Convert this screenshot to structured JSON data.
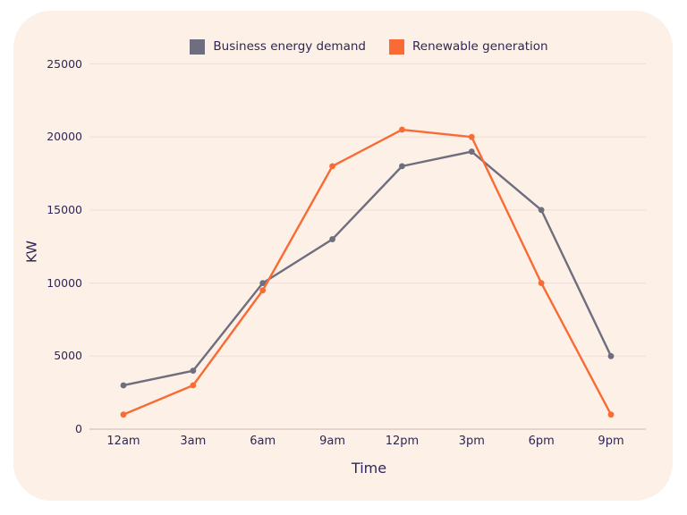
{
  "page": {
    "background_color": "#ffffff",
    "card_color": "#fdf0e6",
    "text_color": "#2f2755"
  },
  "chart_data": {
    "type": "line",
    "title": "",
    "xlabel": "Time",
    "ylabel": "KW",
    "categories": [
      "12am",
      "3am",
      "6am",
      "9am",
      "12pm",
      "3pm",
      "6pm",
      "9pm"
    ],
    "series": [
      {
        "name": "Business energy demand",
        "color": "#6e6e7e",
        "values": [
          3000,
          4000,
          10000,
          13000,
          18000,
          19000,
          15000,
          5000
        ]
      },
      {
        "name": "Renewable generation",
        "color": "#f96b35",
        "values": [
          1000,
          3000,
          9500,
          18000,
          20500,
          20000,
          10000,
          1000
        ]
      }
    ],
    "ylim": [
      0,
      25000
    ],
    "yticks": [
      0,
      5000,
      10000,
      15000,
      20000,
      25000
    ],
    "grid": "horizontal",
    "grid_color": "#f1e0d9",
    "axis_line_color": "#dbc9c2",
    "legend_position": "top",
    "marker": "circle"
  }
}
